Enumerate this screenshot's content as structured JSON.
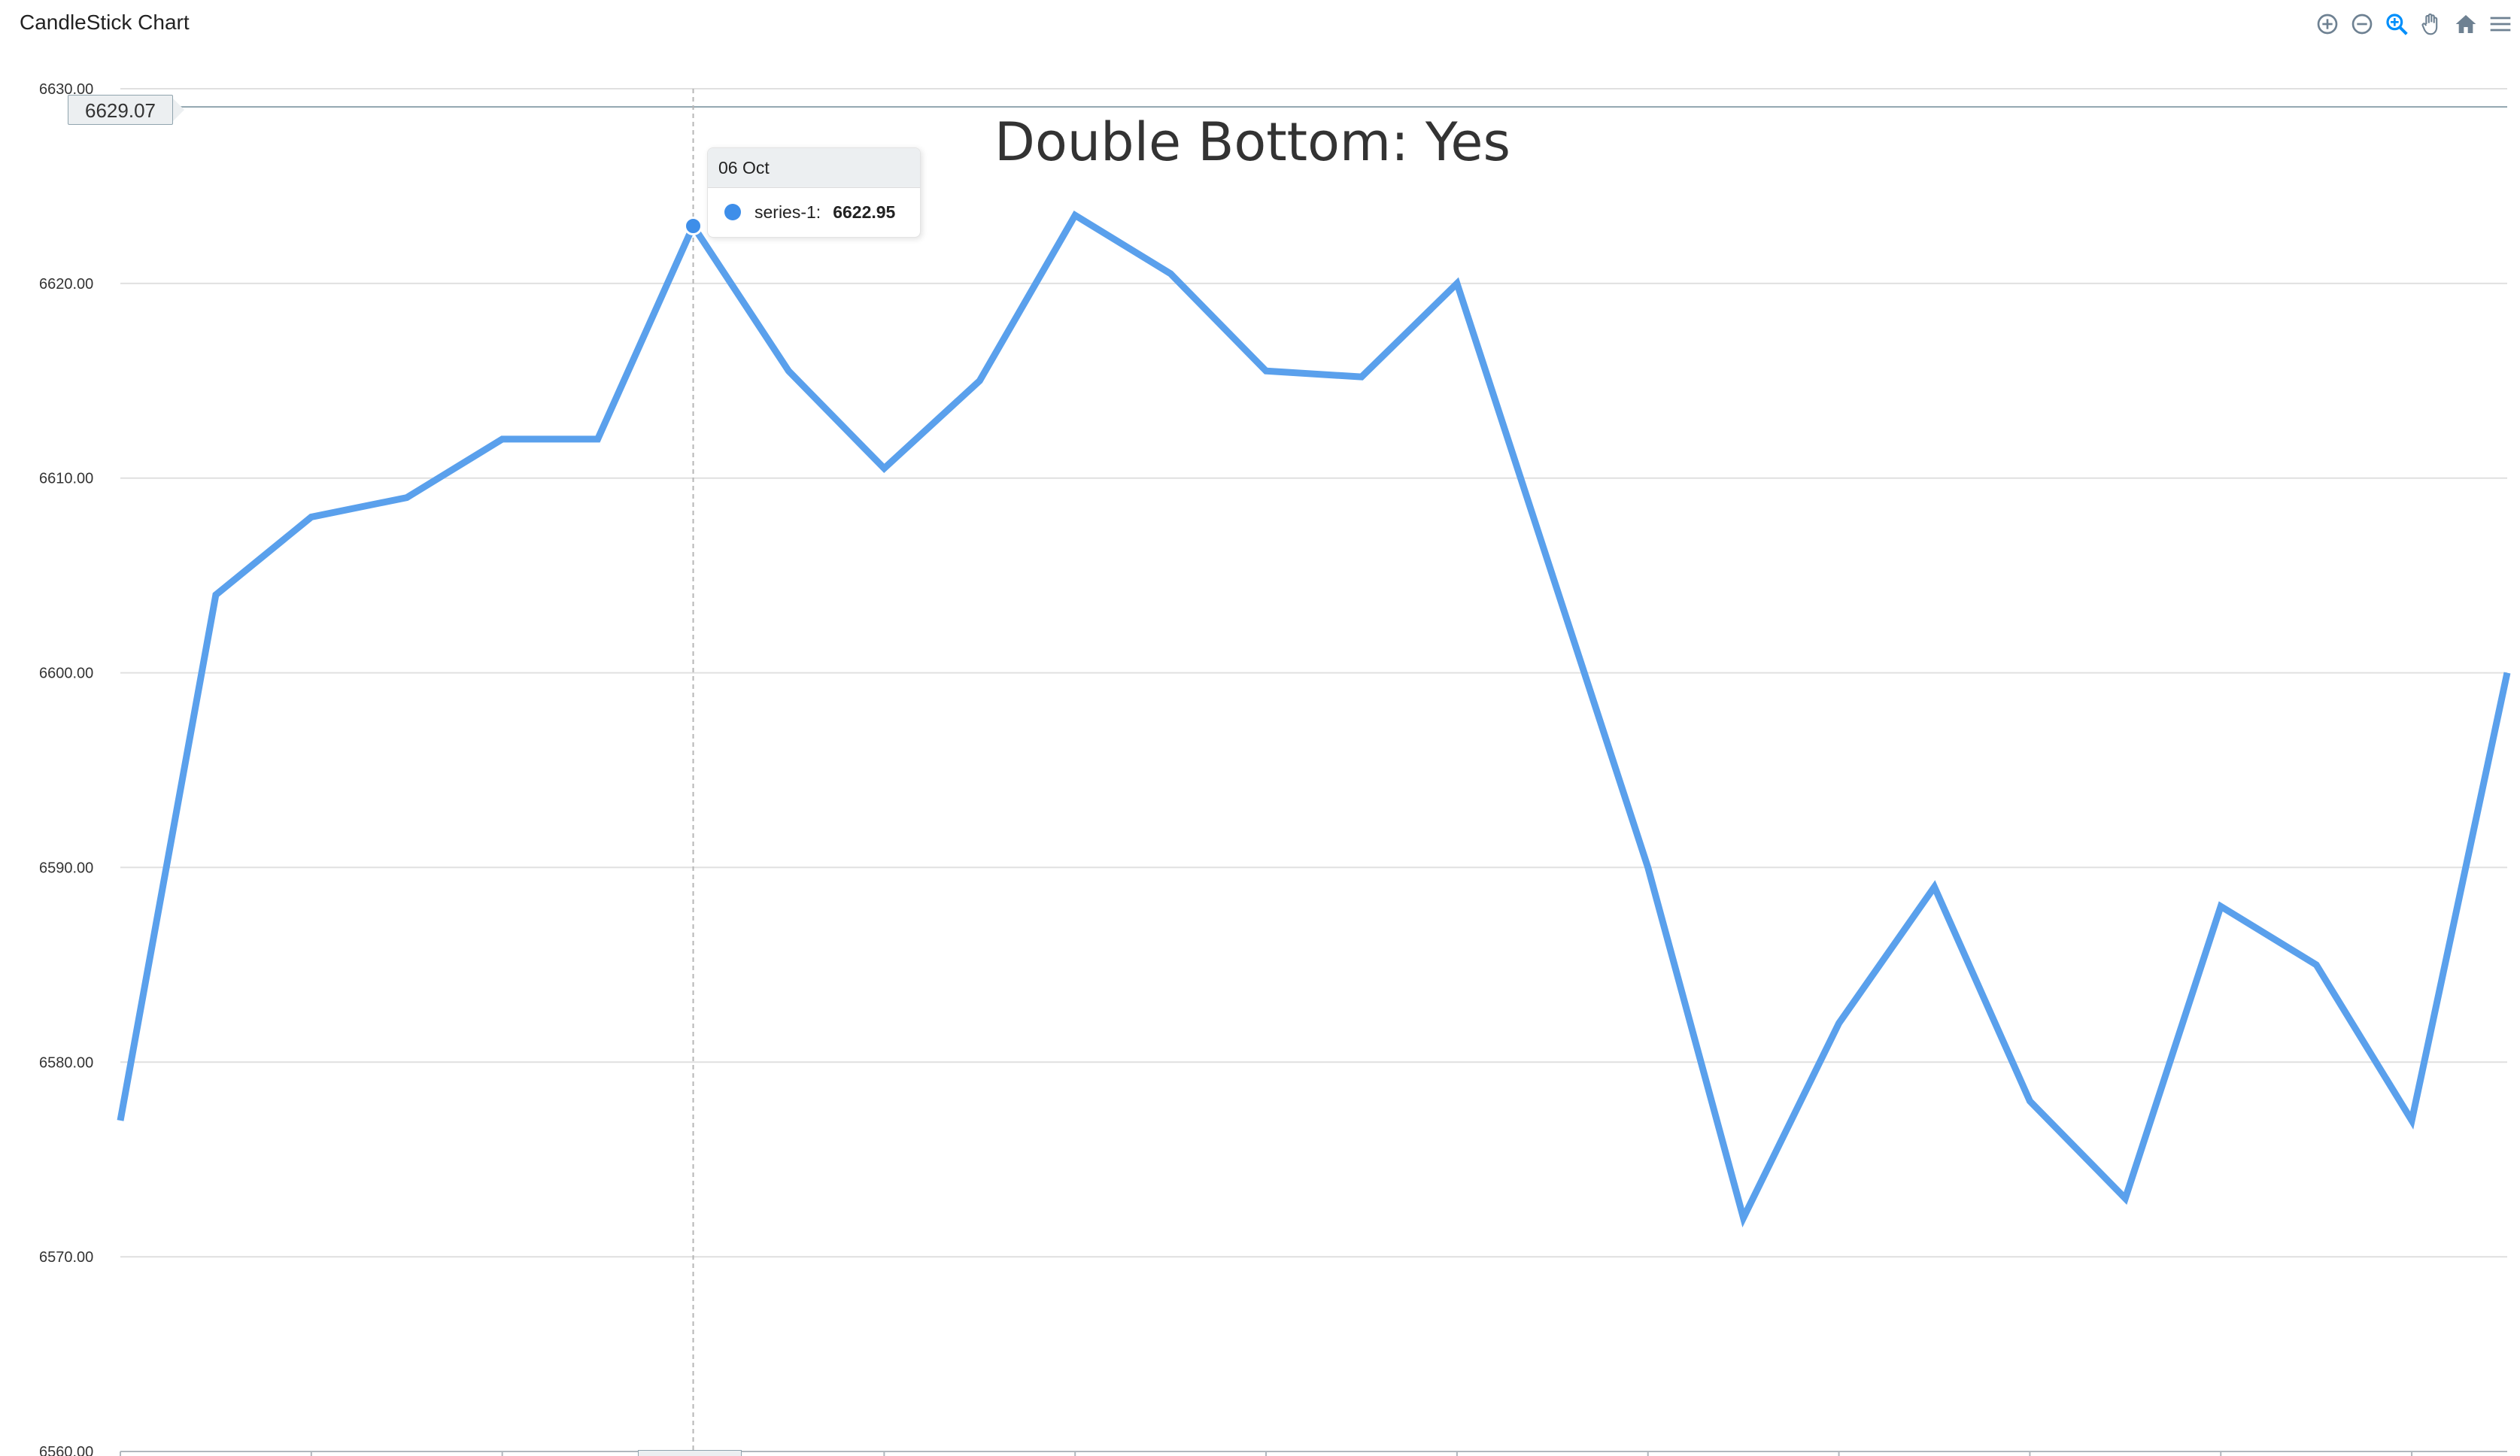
{
  "app": {
    "title": "CandleStick Chart"
  },
  "toolbar": {
    "tools": [
      {
        "name": "zoom-in-icon"
      },
      {
        "name": "zoom-out-icon"
      },
      {
        "name": "selection-zoom-icon"
      },
      {
        "name": "pan-hand-icon"
      },
      {
        "name": "reset-home-icon"
      },
      {
        "name": "menu-icon"
      }
    ]
  },
  "colors": {
    "series": "#5aa0ec",
    "marker": "#3e8ee9",
    "grid": "#e0e0e0",
    "toolbar_icon": "#6e8192",
    "active_tool": "#008ffb"
  },
  "crosshair": {
    "y_label": "6629.07",
    "y_value": 6629.07,
    "x_index": 6
  },
  "tooltip": {
    "date": "06 Oct",
    "series_label": "series-1:",
    "value": "6622.95"
  },
  "chart_data": {
    "type": "line",
    "title": "Double Bottom: Yes",
    "xlabel": "",
    "ylabel": "",
    "ylim": [
      6560,
      6630
    ],
    "y_ticks": [
      "6560.00",
      "6570.00",
      "6580.00",
      "6590.00",
      "6600.00",
      "6610.00",
      "6620.00",
      "6630.00"
    ],
    "x_ticks_count": 13,
    "grid": true,
    "legend": "none",
    "series": [
      {
        "name": "series-1",
        "values": [
          6577.0,
          6604.0,
          6608.0,
          6609.0,
          6612.0,
          6612.0,
          6622.95,
          6615.5,
          6610.5,
          6615.0,
          6623.5,
          6620.5,
          6615.5,
          6615.2,
          6620.0,
          6605.0,
          6590.0,
          6572.0,
          6582.0,
          6589.0,
          6578.0,
          6573.0,
          6588.0,
          6585.0,
          6577.0,
          6600.0
        ]
      }
    ]
  }
}
